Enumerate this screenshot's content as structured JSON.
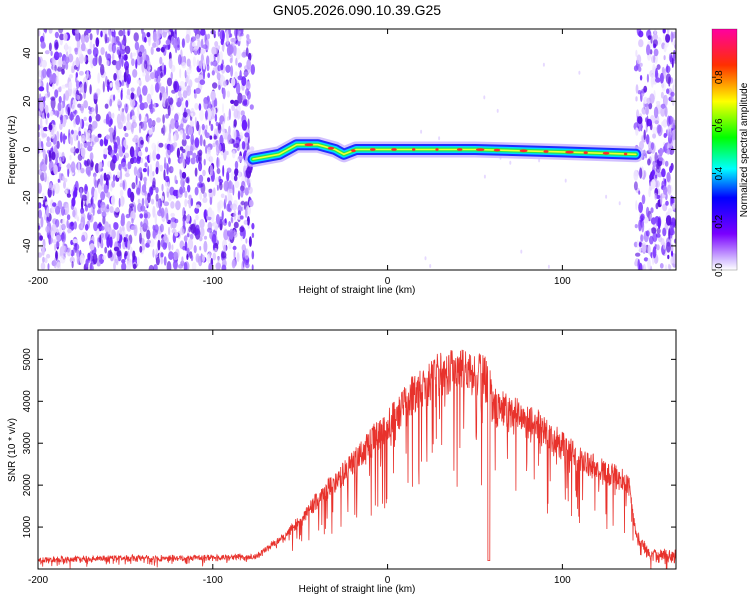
{
  "title": "GN05.2026.090.10.39.G25",
  "chart_data": [
    {
      "type": "heatmap",
      "xlabel": "Height of straight line (km)",
      "ylabel": "Frequency (Hz)",
      "xlim": [
        -200,
        165
      ],
      "ylim": [
        -50,
        50
      ],
      "xticks": [
        -200,
        -100,
        0,
        100
      ],
      "yticks": [
        -40,
        -20,
        0,
        20,
        40
      ],
      "colorbar": {
        "label": "Normalized spectral amplitude",
        "range": [
          0,
          1
        ],
        "ticks": [
          0.0,
          0.2,
          0.4,
          0.6,
          0.8
        ],
        "tick_labels": [
          "0.0",
          "0.2",
          "0.4",
          "0.6",
          "0.8"
        ]
      },
      "features": {
        "noise_regions_km": [
          [
            -200,
            -77
          ],
          [
            142,
            165
          ]
        ],
        "signal_line": {
          "x_range_km": [
            -77,
            142
          ],
          "freq_path_hz": [
            {
              "x": -77,
              "y": -4
            },
            {
              "x": -62,
              "y": -2
            },
            {
              "x": -52,
              "y": 2
            },
            {
              "x": -40,
              "y": 2
            },
            {
              "x": -30,
              "y": 0
            },
            {
              "x": -25,
              "y": -2
            },
            {
              "x": -18,
              "y": 0
            },
            {
              "x": 0,
              "y": 0
            },
            {
              "x": 50,
              "y": 0
            },
            {
              "x": 100,
              "y": -1
            },
            {
              "x": 142,
              "y": -2
            }
          ]
        }
      }
    },
    {
      "type": "line",
      "xlabel": "Height of straight line (km)",
      "ylabel": "SNR (10 * v/v)",
      "xlim": [
        -200,
        165
      ],
      "ylim": [
        0,
        5700
      ],
      "xticks": [
        -200,
        -100,
        0,
        100
      ],
      "yticks": [
        1000,
        2000,
        3000,
        4000,
        5000
      ],
      "color": "#e8322c",
      "envelope": [
        {
          "x": -200,
          "y": 200
        },
        {
          "x": -150,
          "y": 230
        },
        {
          "x": -100,
          "y": 240
        },
        {
          "x": -75,
          "y": 270
        },
        {
          "x": -62,
          "y": 700
        },
        {
          "x": -50,
          "y": 1200
        },
        {
          "x": -40,
          "y": 1800
        },
        {
          "x": -25,
          "y": 2500
        },
        {
          "x": -10,
          "y": 3300
        },
        {
          "x": 0,
          "y": 3800
        },
        {
          "x": 10,
          "y": 4400
        },
        {
          "x": 20,
          "y": 4800
        },
        {
          "x": 30,
          "y": 5100
        },
        {
          "x": 40,
          "y": 5200
        },
        {
          "x": 50,
          "y": 5150
        },
        {
          "x": 58,
          "y": 5000
        },
        {
          "x": 60,
          "y": 4300
        },
        {
          "x": 70,
          "y": 4100
        },
        {
          "x": 80,
          "y": 3900
        },
        {
          "x": 90,
          "y": 3600
        },
        {
          "x": 100,
          "y": 3200
        },
        {
          "x": 110,
          "y": 2900
        },
        {
          "x": 120,
          "y": 2600
        },
        {
          "x": 130,
          "y": 2400
        },
        {
          "x": 138,
          "y": 2200
        },
        {
          "x": 142,
          "y": 900
        },
        {
          "x": 150,
          "y": 400
        },
        {
          "x": 165,
          "y": 350
        }
      ],
      "dips": [
        {
          "x": 58,
          "y": 200
        }
      ]
    }
  ]
}
